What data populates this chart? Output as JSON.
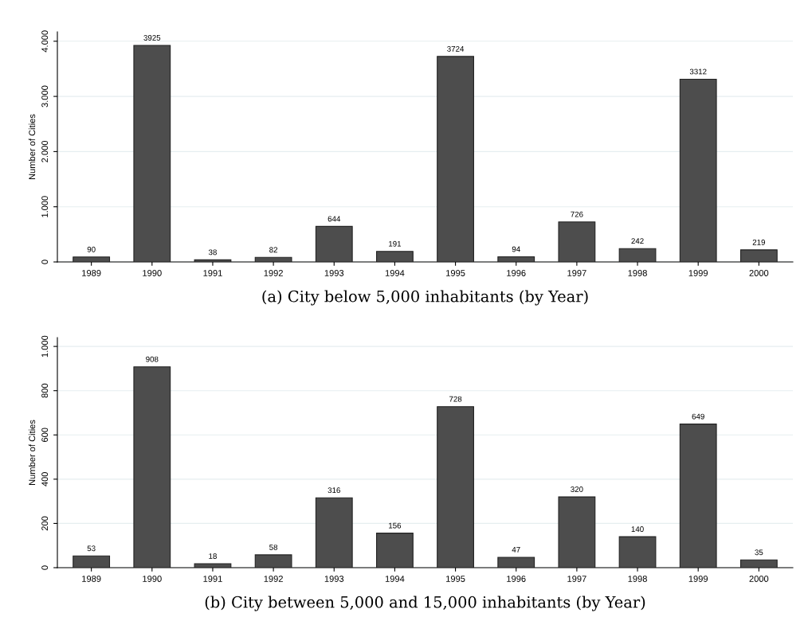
{
  "chart_data": [
    {
      "type": "bar",
      "ylabel": "Number of Cities",
      "categories": [
        "1989",
        "1990",
        "1991",
        "1992",
        "1993",
        "1994",
        "1995",
        "1996",
        "1997",
        "1998",
        "1999",
        "2000"
      ],
      "values": [
        90,
        3925,
        38,
        82,
        644,
        191,
        3724,
        94,
        726,
        242,
        3312,
        219
      ],
      "color": "#4d4d4d",
      "data_labels": true,
      "grid": "y",
      "legend": false,
      "ylim": [
        0,
        4170
      ],
      "yticks": [
        0,
        {
          "value": 1000,
          "label": "1.000"
        },
        {
          "value": 2000,
          "label": "2.000"
        },
        {
          "value": 3000,
          "label": "3.000"
        },
        {
          "value": 4000,
          "label": "4.000"
        }
      ],
      "annotations": [
        "(a) City below 5,000 inhabitants (by Year)"
      ]
    },
    {
      "type": "bar",
      "ylabel": "Number of Cities",
      "categories": [
        "1989",
        "1990",
        "1991",
        "1992",
        "1993",
        "1994",
        "1995",
        "1996",
        "1997",
        "1998",
        "1999",
        "2000"
      ],
      "values": [
        53,
        908,
        18,
        58,
        316,
        156,
        728,
        47,
        320,
        140,
        649,
        35
      ],
      "color": "#4d4d4d",
      "data_labels": true,
      "grid": "y",
      "legend": false,
      "ylim": [
        0,
        1040
      ],
      "yticks": [
        0,
        200,
        400,
        600,
        800,
        {
          "value": 1000,
          "label": "1.000"
        }
      ],
      "annotations": [
        "(b) City between 5,000 and 15,000 inhabitants (by Year)"
      ]
    }
  ]
}
